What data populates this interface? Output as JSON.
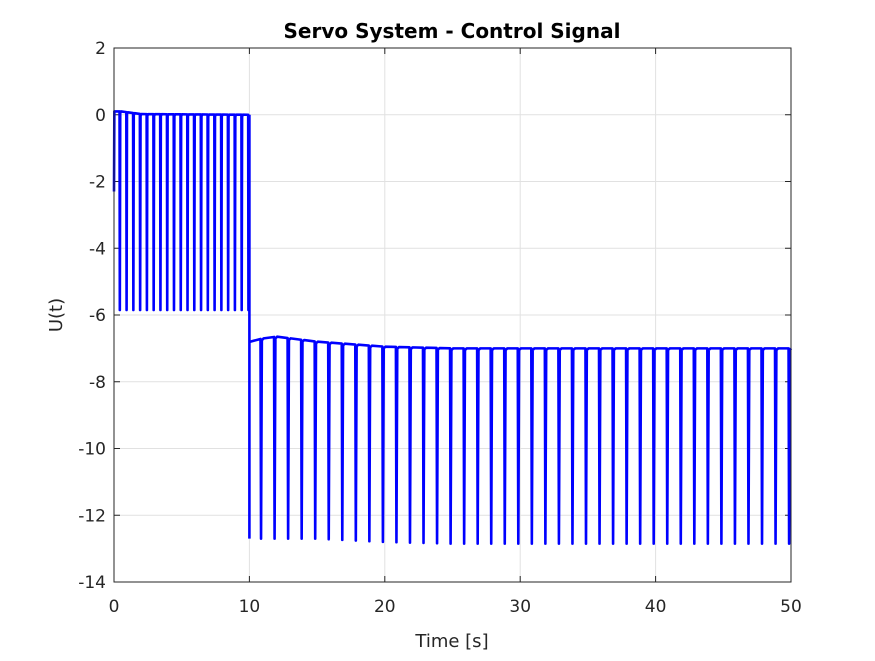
{
  "chart_data": {
    "type": "line",
    "title": "Servo System - Control Signal",
    "xlabel": "Time [s]",
    "ylabel": "U(t)",
    "xlim": [
      0,
      50
    ],
    "ylim": [
      -14,
      2
    ],
    "xticks": [
      0,
      10,
      20,
      30,
      40,
      50
    ],
    "yticks": [
      2,
      0,
      -2,
      -4,
      -6,
      -8,
      -10,
      -12,
      -14
    ],
    "grid": true,
    "line_color": "#0000ff",
    "series": [
      {
        "segments": [
          {
            "t_start": 0,
            "t_end": 10,
            "spike_period": 0.5,
            "baseline": [
              [
                0,
                0.1
              ],
              [
                0.5,
                0.1
              ],
              [
                2,
                0.02
              ],
              [
                10,
                0.0
              ]
            ],
            "spike_min": -5.85
          },
          {
            "t_start": 10,
            "t_end": 50,
            "spike_period": 1.0,
            "baseline": [
              [
                10,
                -6.8
              ],
              [
                11,
                -6.7
              ],
              [
                12,
                -6.65
              ],
              [
                15,
                -6.8
              ],
              [
                20,
                -6.95
              ],
              [
                25,
                -7.0
              ],
              [
                50,
                -7.0
              ]
            ],
            "spike_min": [
              [
                10,
                -12.7
              ],
              [
                15,
                -12.7
              ],
              [
                20,
                -12.8
              ],
              [
                25,
                -12.85
              ],
              [
                50,
                -12.85
              ]
            ]
          }
        ]
      }
    ]
  }
}
